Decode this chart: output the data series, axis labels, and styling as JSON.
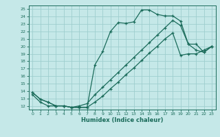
{
  "xlabel": "Humidex (Indice chaleur)",
  "bg_color": "#c5e8e8",
  "grid_color": "#9ecece",
  "line_color": "#1a6b5a",
  "xlim": [
    -0.5,
    23.5
  ],
  "ylim": [
    11.5,
    25.5
  ],
  "xticks": [
    0,
    1,
    2,
    3,
    4,
    5,
    6,
    7,
    8,
    9,
    10,
    11,
    12,
    13,
    14,
    15,
    16,
    17,
    18,
    19,
    20,
    21,
    22,
    23
  ],
  "yticks": [
    12,
    13,
    14,
    15,
    16,
    17,
    18,
    19,
    20,
    21,
    22,
    23,
    24,
    25
  ],
  "line1_x": [
    0,
    1,
    2,
    3,
    4,
    5,
    6,
    7,
    8,
    9,
    10,
    11,
    12,
    13,
    14,
    15,
    16,
    17,
    18,
    19,
    20,
    21,
    22,
    23
  ],
  "line1_y": [
    13.8,
    12.9,
    12.5,
    12.0,
    12.0,
    11.8,
    11.8,
    11.8,
    17.5,
    19.3,
    22.0,
    23.2,
    23.1,
    23.3,
    24.9,
    24.9,
    24.3,
    24.1,
    24.1,
    23.4,
    20.3,
    19.5,
    19.2,
    20.0
  ],
  "line2_x": [
    0,
    1,
    2,
    3,
    4,
    5,
    6,
    7,
    8,
    9,
    10,
    11,
    12,
    13,
    14,
    15,
    16,
    17,
    18,
    19,
    20,
    21,
    22,
    23
  ],
  "line2_y": [
    13.8,
    12.9,
    12.5,
    12.0,
    12.0,
    11.8,
    12.0,
    12.3,
    13.5,
    14.5,
    15.5,
    16.5,
    17.5,
    18.5,
    19.5,
    20.5,
    21.5,
    22.5,
    23.5,
    22.8,
    20.3,
    20.3,
    19.2,
    20.0
  ],
  "line3_x": [
    0,
    1,
    2,
    3,
    4,
    5,
    6,
    7,
    8,
    9,
    10,
    11,
    12,
    13,
    14,
    15,
    16,
    17,
    18,
    19,
    20,
    21,
    22,
    23
  ],
  "line3_y": [
    13.5,
    12.5,
    12.0,
    12.0,
    12.0,
    11.8,
    11.8,
    11.8,
    12.5,
    13.3,
    14.3,
    15.2,
    16.2,
    17.1,
    18.1,
    19.1,
    20.0,
    21.0,
    21.8,
    18.8,
    19.0,
    19.0,
    19.5,
    20.0
  ]
}
